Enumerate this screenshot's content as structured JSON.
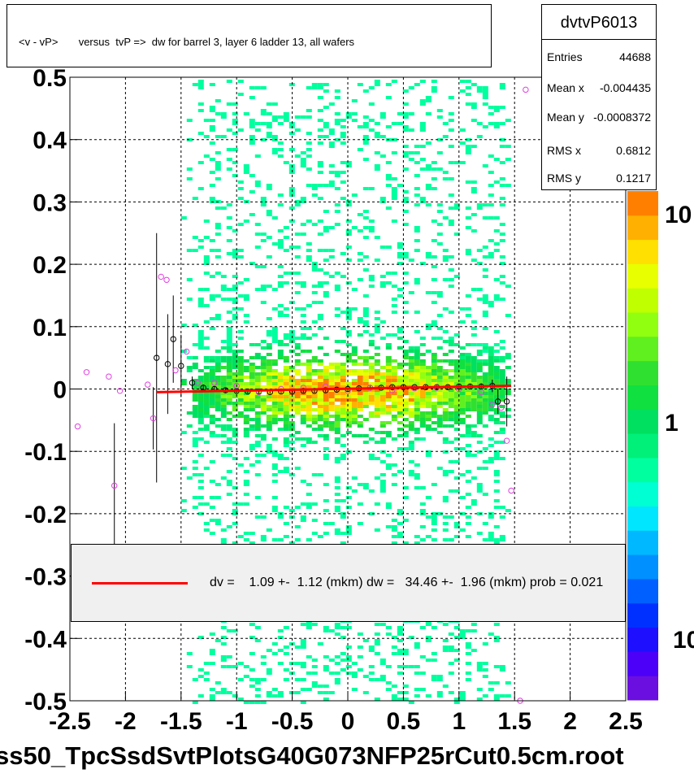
{
  "title": "<v - vP>       versus  tvP =>  dw for barrel 3, layer 6 ladder 13, all wafers",
  "stats": {
    "name": "dvtvP6013",
    "rows": [
      {
        "key": "Entries",
        "value": "44688"
      },
      {
        "key": "Mean x",
        "value": "-0.004435"
      },
      {
        "key": "Mean y",
        "value": "-0.0008372"
      },
      {
        "key": "RMS x",
        "value": "0.6812"
      },
      {
        "key": "RMS y",
        "value": "0.1217"
      }
    ]
  },
  "fit": {
    "text": "dv =    1.09 +-  1.12 (mkm) dw =   34.46 +-  1.96 (mkm) prob = 0.021",
    "line_color": "#ff0000"
  },
  "file_label": "ss50_TpcSsdSvtPlotsG40G073NFP25rCut0.5cm.root",
  "colors": {
    "frame": "#000000",
    "grid": "#000000",
    "fit_line": "#ff0000",
    "palette": [
      "#6a0fe0",
      "#4c00f8",
      "#1e10ff",
      "#0030ff",
      "#0060ff",
      "#0090ff",
      "#00b8ff",
      "#00e6ff",
      "#00ffd2",
      "#00ff9e",
      "#00f07a",
      "#00e060",
      "#10e040",
      "#30e030",
      "#60f020",
      "#90ff10",
      "#c0ff00",
      "#e8ff00",
      "#ffe000",
      "#ffb000",
      "#ff8000"
    ]
  },
  "chart_data": {
    "type": "heatmap",
    "xlim": [
      -2.5,
      2.5
    ],
    "ylim": [
      -0.5,
      0.5
    ],
    "x_ticks": [
      "-2.5",
      "-2",
      "-1.5",
      "-1",
      "-0.5",
      "0",
      "0.5",
      "1",
      "1.5",
      "2",
      "2.5"
    ],
    "y_ticks": [
      "-0.5",
      "-0.4",
      "-0.3",
      "-0.2",
      "-0.1",
      "0",
      "0.1",
      "0.2",
      "0.3",
      "0.4",
      "0.5"
    ],
    "palette_labels": [
      "10",
      "1",
      "10"
    ],
    "grid": true,
    "density": {
      "x_range": [
        -1.5,
        1.45
      ],
      "core_y_sigma": 0.04,
      "halo_y_range": [
        -0.5,
        0.5
      ]
    },
    "profile_black": [
      {
        "x": -1.72,
        "y": 0.05,
        "err": 0.2
      },
      {
        "x": -1.62,
        "y": 0.04,
        "err": 0.08
      },
      {
        "x": -1.57,
        "y": 0.08,
        "err": 0.07
      },
      {
        "x": -1.5,
        "y": 0.037,
        "err": 0.05
      },
      {
        "x": -1.4,
        "y": 0.01,
        "err": 0.01
      },
      {
        "x": -1.3,
        "y": 0.002,
        "err": 0.005
      },
      {
        "x": -1.2,
        "y": 0.0,
        "err": 0.004
      },
      {
        "x": -1.1,
        "y": -0.002,
        "err": 0.004
      },
      {
        "x": -1.0,
        "y": -0.003,
        "err": 0.003
      },
      {
        "x": -0.9,
        "y": -0.004,
        "err": 0.003
      },
      {
        "x": -0.8,
        "y": -0.004,
        "err": 0.003
      },
      {
        "x": -0.7,
        "y": -0.005,
        "err": 0.003
      },
      {
        "x": -0.6,
        "y": -0.004,
        "err": 0.003
      },
      {
        "x": -0.5,
        "y": -0.004,
        "err": 0.003
      },
      {
        "x": -0.4,
        "y": -0.003,
        "err": 0.003
      },
      {
        "x": -0.3,
        "y": -0.003,
        "err": 0.003
      },
      {
        "x": -0.2,
        "y": -0.002,
        "err": 0.003
      },
      {
        "x": -0.1,
        "y": -0.001,
        "err": 0.003
      },
      {
        "x": 0.0,
        "y": 0.0,
        "err": 0.003
      },
      {
        "x": 0.1,
        "y": 0.001,
        "err": 0.003
      },
      {
        "x": 0.2,
        "y": 0.002,
        "err": 0.003
      },
      {
        "x": 0.3,
        "y": 0.002,
        "err": 0.003
      },
      {
        "x": 0.4,
        "y": 0.003,
        "err": 0.003
      },
      {
        "x": 0.5,
        "y": 0.003,
        "err": 0.003
      },
      {
        "x": 0.6,
        "y": 0.003,
        "err": 0.003
      },
      {
        "x": 0.7,
        "y": 0.003,
        "err": 0.003
      },
      {
        "x": 0.8,
        "y": 0.003,
        "err": 0.003
      },
      {
        "x": 0.9,
        "y": 0.003,
        "err": 0.003
      },
      {
        "x": 1.0,
        "y": 0.004,
        "err": 0.004
      },
      {
        "x": 1.1,
        "y": 0.004,
        "err": 0.004
      },
      {
        "x": 1.2,
        "y": 0.004,
        "err": 0.005
      },
      {
        "x": 1.3,
        "y": 0.005,
        "err": 0.01
      },
      {
        "x": 1.35,
        "y": -0.02,
        "err": 0.02
      },
      {
        "x": 1.43,
        "y": -0.02,
        "err": 0.04
      }
    ],
    "profile_magenta": [
      {
        "x": -2.43,
        "y": -0.06
      },
      {
        "x": -2.35,
        "y": 0.027
      },
      {
        "x": -2.15,
        "y": 0.02
      },
      {
        "x": -2.1,
        "y": -0.155,
        "err": 0.1
      },
      {
        "x": -2.05,
        "y": -0.003
      },
      {
        "x": -1.8,
        "y": 0.007
      },
      {
        "x": -1.75,
        "y": -0.047,
        "err": 0.05
      },
      {
        "x": -1.68,
        "y": 0.18
      },
      {
        "x": -1.63,
        "y": 0.175
      },
      {
        "x": -1.55,
        "y": 0.03
      },
      {
        "x": -1.45,
        "y": 0.06
      },
      {
        "x": -1.35,
        "y": 0.01
      },
      {
        "x": -1.2,
        "y": 0.01
      },
      {
        "x": -1.0,
        "y": 0.005
      },
      {
        "x": -0.8,
        "y": -0.005
      },
      {
        "x": -0.6,
        "y": 0.0
      },
      {
        "x": -0.4,
        "y": 0.002
      },
      {
        "x": -0.2,
        "y": 0.004
      },
      {
        "x": 0.0,
        "y": -0.003
      },
      {
        "x": 0.2,
        "y": 0.002
      },
      {
        "x": 0.4,
        "y": -0.002
      },
      {
        "x": 0.6,
        "y": 0.001
      },
      {
        "x": 0.8,
        "y": 0.002
      },
      {
        "x": 1.0,
        "y": 0.0
      },
      {
        "x": 1.2,
        "y": -0.005
      },
      {
        "x": 1.3,
        "y": -0.025
      },
      {
        "x": 1.38,
        "y": -0.03
      },
      {
        "x": 1.43,
        "y": -0.083
      },
      {
        "x": 1.47,
        "y": -0.163
      },
      {
        "x": 1.55,
        "y": -0.5
      },
      {
        "x": 1.6,
        "y": 0.48
      }
    ],
    "fit_segment": {
      "x": [
        -1.72,
        1.47
      ],
      "y": [
        -0.005,
        0.005
      ]
    }
  }
}
